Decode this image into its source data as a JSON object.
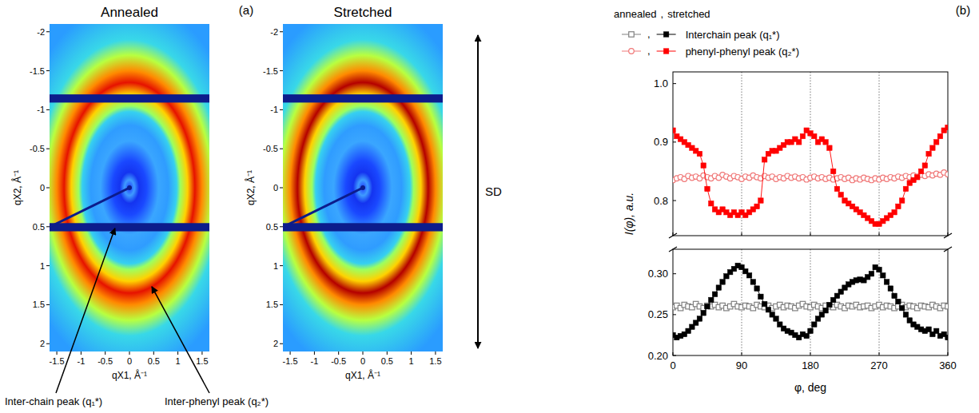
{
  "figure": {
    "panel_labels": [
      "(a)",
      "(b)"
    ],
    "direction_label": "SD",
    "annotations": [
      "Inter-chain peak (q₁*)",
      "Inter-phenyl peak (q₂*)"
    ]
  },
  "chart_data": [
    {
      "type": "heatmap",
      "title": "Annealed",
      "xlabel": "qX1, Å⁻¹",
      "ylabel": "qX2, Å⁻¹",
      "xlim": [
        -1.65,
        1.65
      ],
      "ylim": [
        2.1,
        -2.1
      ],
      "xticks": [
        -1.5,
        -1,
        -0.5,
        0,
        0.5,
        1,
        1.5
      ],
      "yticks": [
        -2,
        -1.5,
        -1,
        -0.5,
        0,
        0.5,
        1,
        1.5,
        2
      ],
      "ring_q": [
        0.6,
        1.35
      ]
    },
    {
      "type": "heatmap",
      "title": "Stretched",
      "xlabel": "qX1, Å⁻¹",
      "ylabel": "qX2, Å⁻¹",
      "xlim": [
        -1.65,
        1.65
      ],
      "ylim": [
        2.1,
        -2.1
      ],
      "xticks": [
        -1.5,
        -1,
        -0.5,
        0,
        0.5,
        1,
        1.5
      ],
      "yticks": [
        -2,
        -1.5,
        -1,
        -0.5,
        0,
        0.5,
        1,
        1.5,
        2
      ],
      "ring_q": [
        0.6,
        1.35
      ]
    },
    {
      "type": "line",
      "tick_labels": "y",
      "grid": true,
      "xlim": [
        0,
        360
      ],
      "ylim": [
        0.74,
        1.02
      ],
      "xticks": [
        0,
        90,
        180,
        270,
        360
      ],
      "yticks": [
        0.8,
        0.9,
        {
          "value": 1,
          "label": "1.0"
        }
      ],
      "legend_label": "phenyl-phenyl peak (q₂*)",
      "x": [
        0,
        5,
        10,
        15,
        20,
        25,
        30,
        35,
        40,
        45,
        50,
        55,
        60,
        65,
        70,
        75,
        80,
        85,
        90,
        95,
        100,
        105,
        110,
        115,
        120,
        125,
        130,
        135,
        140,
        145,
        150,
        155,
        160,
        165,
        170,
        175,
        180,
        185,
        190,
        195,
        200,
        205,
        210,
        215,
        220,
        225,
        230,
        235,
        240,
        245,
        250,
        255,
        260,
        265,
        270,
        275,
        280,
        285,
        290,
        295,
        300,
        305,
        310,
        315,
        320,
        325,
        330,
        335,
        340,
        345,
        350,
        355,
        360
      ],
      "series": [
        {
          "color": "#f07878",
          "marker": "open-circle",
          "line_style": "solid",
          "values": [
            0.835,
            0.838,
            0.84,
            0.837,
            0.842,
            0.839,
            0.841,
            0.838,
            0.843,
            0.84,
            0.838,
            0.842,
            0.839,
            0.844,
            0.841,
            0.838,
            0.842,
            0.84,
            0.837,
            0.841,
            0.839,
            0.843,
            0.84,
            0.838,
            0.842,
            0.839,
            0.841,
            0.837,
            0.84,
            0.838,
            0.842,
            0.839,
            0.841,
            0.838,
            0.84,
            0.836,
            0.839,
            0.841,
            0.838,
            0.84,
            0.837,
            0.839,
            0.836,
            0.838,
            0.84,
            0.837,
            0.839,
            0.835,
            0.838,
            0.836,
            0.839,
            0.837,
            0.835,
            0.838,
            0.836,
            0.839,
            0.837,
            0.84,
            0.838,
            0.841,
            0.839,
            0.842,
            0.84,
            0.843,
            0.841,
            0.844,
            0.842,
            0.845,
            0.843,
            0.846,
            0.844,
            0.848,
            0.845
          ]
        },
        {
          "color": "#ff0000",
          "marker": "square",
          "line_style": "solid",
          "values": [
            0.92,
            0.91,
            0.905,
            0.9,
            0.895,
            0.89,
            0.885,
            0.88,
            0.86,
            0.82,
            0.795,
            0.785,
            0.78,
            0.785,
            0.78,
            0.775,
            0.78,
            0.775,
            0.78,
            0.775,
            0.78,
            0.785,
            0.79,
            0.8,
            0.87,
            0.88,
            0.885,
            0.885,
            0.89,
            0.895,
            0.9,
            0.9,
            0.905,
            0.9,
            0.91,
            0.92,
            0.915,
            0.91,
            0.9,
            0.905,
            0.9,
            0.89,
            0.85,
            0.82,
            0.81,
            0.8,
            0.795,
            0.79,
            0.785,
            0.78,
            0.775,
            0.77,
            0.765,
            0.76,
            0.76,
            0.765,
            0.77,
            0.775,
            0.78,
            0.79,
            0.8,
            0.82,
            0.83,
            0.835,
            0.84,
            0.85,
            0.86,
            0.88,
            0.89,
            0.9,
            0.91,
            0.92,
            0.925
          ]
        }
      ]
    },
    {
      "type": "line",
      "grid": true,
      "legend": "top",
      "xlabel": "φ, deg",
      "ylabel": "I(φ), a.u.",
      "xlim": [
        0,
        360
      ],
      "ylim": [
        0.2,
        0.33
      ],
      "xticks": [
        0,
        90,
        180,
        270,
        360
      ],
      "yticks": [
        {
          "value": 0.2,
          "label": "0.20"
        },
        0.25,
        {
          "value": 0.3,
          "label": "0.30"
        }
      ],
      "legend_label": "Interchain peak (q₁*)",
      "legend_separator": ",",
      "x": [
        0,
        5,
        10,
        15,
        20,
        25,
        30,
        35,
        40,
        45,
        50,
        55,
        60,
        65,
        70,
        75,
        80,
        85,
        90,
        95,
        100,
        105,
        110,
        115,
        120,
        125,
        130,
        135,
        140,
        145,
        150,
        155,
        160,
        165,
        170,
        175,
        180,
        185,
        190,
        195,
        200,
        205,
        210,
        215,
        220,
        225,
        230,
        235,
        240,
        245,
        250,
        255,
        260,
        265,
        270,
        275,
        280,
        285,
        290,
        295,
        300,
        305,
        310,
        315,
        320,
        325,
        330,
        335,
        340,
        345,
        350,
        355,
        360
      ],
      "series": [
        {
          "name": "annealed",
          "color": "#808080",
          "marker": "open-square",
          "line_style": "solid",
          "values": [
            0.259,
            0.261,
            0.258,
            0.262,
            0.26,
            0.259,
            0.263,
            0.26,
            0.258,
            0.261,
            0.26,
            0.262,
            0.259,
            0.261,
            0.258,
            0.26,
            0.263,
            0.26,
            0.259,
            0.261,
            0.26,
            0.258,
            0.262,
            0.26,
            0.259,
            0.261,
            0.258,
            0.26,
            0.262,
            0.259,
            0.261,
            0.26,
            0.258,
            0.261,
            0.263,
            0.26,
            0.259,
            0.262,
            0.26,
            0.258,
            0.261,
            0.26,
            0.259,
            0.262,
            0.26,
            0.258,
            0.261,
            0.26,
            0.262,
            0.259,
            0.26,
            0.261,
            0.258,
            0.26,
            0.262,
            0.259,
            0.261,
            0.26,
            0.258,
            0.26,
            0.262,
            0.259,
            0.261,
            0.26,
            0.258,
            0.261,
            0.26,
            0.259,
            0.262,
            0.26,
            0.258,
            0.261,
            0.26
          ]
        },
        {
          "name": "stretched",
          "color": "#000000",
          "marker": "square",
          "line_style": "solid",
          "values": [
            0.225,
            0.222,
            0.224,
            0.226,
            0.23,
            0.235,
            0.24,
            0.245,
            0.252,
            0.26,
            0.268,
            0.275,
            0.283,
            0.29,
            0.297,
            0.302,
            0.306,
            0.31,
            0.308,
            0.303,
            0.298,
            0.29,
            0.282,
            0.272,
            0.263,
            0.256,
            0.25,
            0.245,
            0.238,
            0.233,
            0.23,
            0.228,
            0.225,
            0.222,
            0.226,
            0.224,
            0.23,
            0.238,
            0.245,
            0.25,
            0.255,
            0.262,
            0.268,
            0.273,
            0.278,
            0.283,
            0.287,
            0.29,
            0.292,
            0.293,
            0.292,
            0.296,
            0.3,
            0.308,
            0.305,
            0.298,
            0.29,
            0.282,
            0.273,
            0.266,
            0.258,
            0.25,
            0.243,
            0.238,
            0.235,
            0.232,
            0.23,
            0.232,
            0.226,
            0.23,
            0.224,
            0.226,
            0.222
          ]
        }
      ]
    }
  ]
}
